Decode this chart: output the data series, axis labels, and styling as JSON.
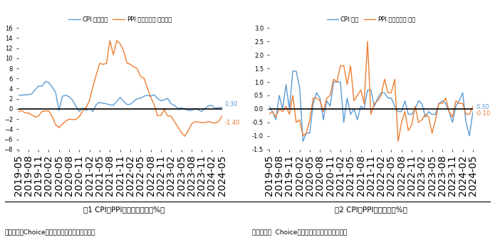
{
  "color_cpi": "#5B9BD5",
  "color_ppi": "#ED7D31",
  "title1": "图1 CPI、PPI当月同比增速（%）",
  "title2": "图2 CPI、PPI环比增速（%）",
  "source1": "数据来源：Choice，北京大学国民经济研究中心",
  "source2": "数据来源：  Choice，北京大学国民经济研究中心",
  "legend1_cpi": "CPI:当月同比",
  "legend1_ppi": "PPI:全部工业品:当月同比",
  "legend2_cpi": "CPI:环比",
  "legend2_ppi": "PPI:全部工业品:环比",
  "cpi_yoy_last": 0.3,
  "ppi_yoy_last": -1.4,
  "cpi_mom_last": 0.3,
  "ppi_mom_last": -0.1,
  "ylim1": [
    -8,
    16
  ],
  "ylim2": [
    -1.5,
    3.0
  ]
}
